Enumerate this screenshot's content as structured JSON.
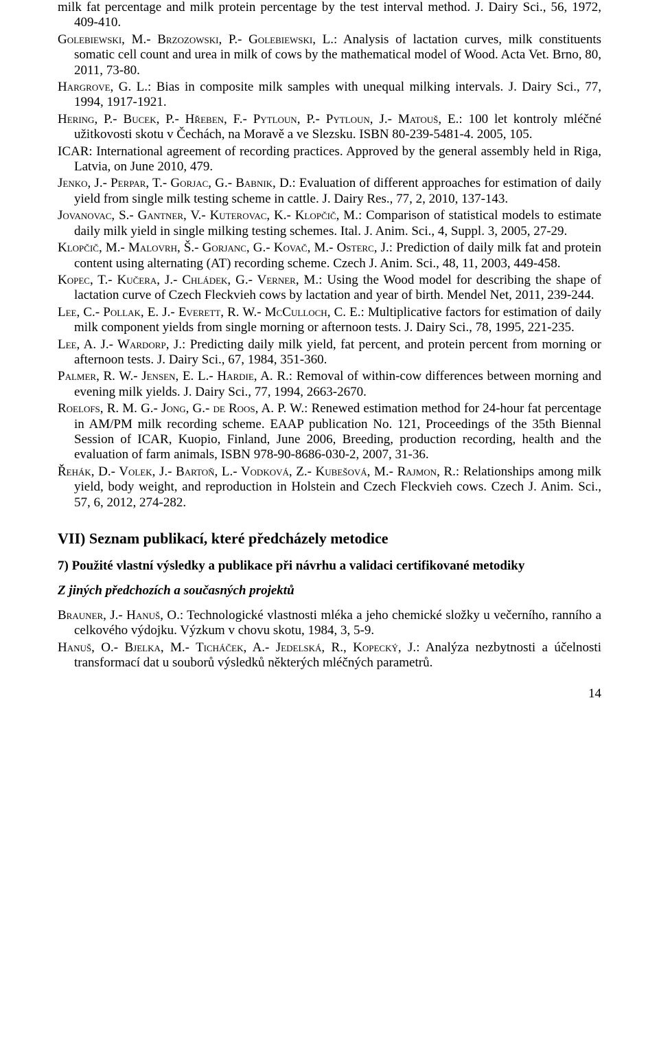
{
  "refs": [
    {
      "authors": "",
      "rest": "milk fat percentage and milk protein percentage by the test interval method. J. Dairy Sci., 56, 1972, 409-410."
    },
    {
      "authors": "Golebiewski, M.- Brzozowski, P.- Golebiewski, L.",
      "rest": ": Analysis of lactation curves, milk constituents somatic cell count and urea in milk of cows by the mathematical model of Wood. Acta Vet. Brno, 80, 2011, 73-80."
    },
    {
      "authors": "Hargrove, G. L.",
      "rest": ": Bias in composite milk samples with unequal milking intervals. J. Dairy Sci., 77, 1994, 1917-1921."
    },
    {
      "authors": "Hering, P.- Bucek, P.- Hřeben, F.- Pytloun, P.- Pytloun, J.- Matouš, E.",
      "rest": ": 100 let kontroly mléčné užitkovosti skotu v Čechách, na Moravě a ve Slezsku. ISBN 80-239-5481-4. 2005, 105."
    },
    {
      "authors": "",
      "rest": "ICAR: International agreement of recording practices. Approved by the general assembly held in Riga, Latvia, on June 2010, 479."
    },
    {
      "authors": "Jenko, J.- Perpar, T.- Gorjac, G.- Babnik, D.",
      "rest": ": Evaluation of different approaches for estimation of daily yield from single milk testing scheme in cattle. J. Dairy Res., 77, 2, 2010, 137-143."
    },
    {
      "authors": "Jovanovac, S.- Gantner, V.- Kuterovac, K.- Klopčič, M.",
      "rest": ": Comparison of statistical models to estimate daily milk yield in single milking testing schemes. Ital. J. Anim. Sci., 4, Suppl. 3, 2005, 27-29."
    },
    {
      "authors": "Klopčič, M.- Malovrh, Š.- Gorjanc, G.- Kovač, M.- Osterc, J.",
      "rest": ": Prediction of daily milk fat and protein content using alternating (AT) recording scheme. Czech J. Anim. Sci., 48, 11, 2003, 449-458."
    },
    {
      "authors": "Kopec, T.- Kučera, J.- Chládek, G.- Verner, M.",
      "rest": ": Using the Wood model for describing the shape of lactation curve of Czech Fleckvieh cows by lactation and year of birth. Mendel Net, 2011, 239-244."
    },
    {
      "authors": "Lee, C.- Pollak, E. J.- Everett, R. W.- McCulloch, C. E.",
      "rest": ": Multiplicative factors for estimation of daily milk component yields from single morning or afternoon tests. J. Dairy Sci., 78, 1995, 221-235."
    },
    {
      "authors": "Lee, A. J.- Wardorp, J.",
      "rest": ": Predicting daily milk yield, fat percent, and protein percent from morning or afternoon tests. J. Dairy Sci., 67, 1984, 351-360."
    },
    {
      "authors": "Palmer, R. W.- Jensen, E. L.- Hardie, A. R.",
      "rest": ": Removal of within-cow differences between morning and evening milk yields. J. Dairy Sci., 77, 1994, 2663-2670."
    },
    {
      "authors": "Roelofs, R. M. G.- Jong, G.- de Roos, A. P. W.",
      "rest": ": Renewed estimation method for 24-hour fat percentage in AM/PM milk recording scheme. EAAP publication No. 121, Proceedings of the 35th Biennal Session of ICAR, Kuopio, Finland, June 2006, Breeding, production recording, health and the evaluation of farm animals, ISBN 978-90-8686-030-2, 2007, 31-36."
    },
    {
      "authors": "Řehák, D.- Volek, J.- Bartoň, L.- Vodková, Z.- Kubešová, M.- Rajmon, R.",
      "rest": ": Relationships among milk yield, body weight, and reproduction in Holstein and Czech Fleckvieh cows. Czech J. Anim. Sci., 57, 6, 2012, 274-282."
    }
  ],
  "section_heading": "VII) Seznam publikací, které předcházely metodice",
  "sub_heading": "7) Použité vlastní výsledky a publikace při návrhu a validaci certifikované metodiky",
  "italic_heading": "Z jiných předchozích a současných projektů",
  "refs2": [
    {
      "authors": "Brauner, J.- Hanuš, O.",
      "rest": ": Technologické vlastnosti mléka a jeho chemické složky u večerního, ranního a celkového výdojku. Výzkum v chovu skotu, 1984, 3, 5-9."
    },
    {
      "authors": "Hanuš, O.- Bjelka, M.- Ticháček, A.- Jedelská, R., Kopecký, J.",
      "rest": ": Analýza nezbytnosti a účelnosti transformací dat u souborů výsledků některých mléčných parametrů."
    }
  ],
  "page_number": "14"
}
